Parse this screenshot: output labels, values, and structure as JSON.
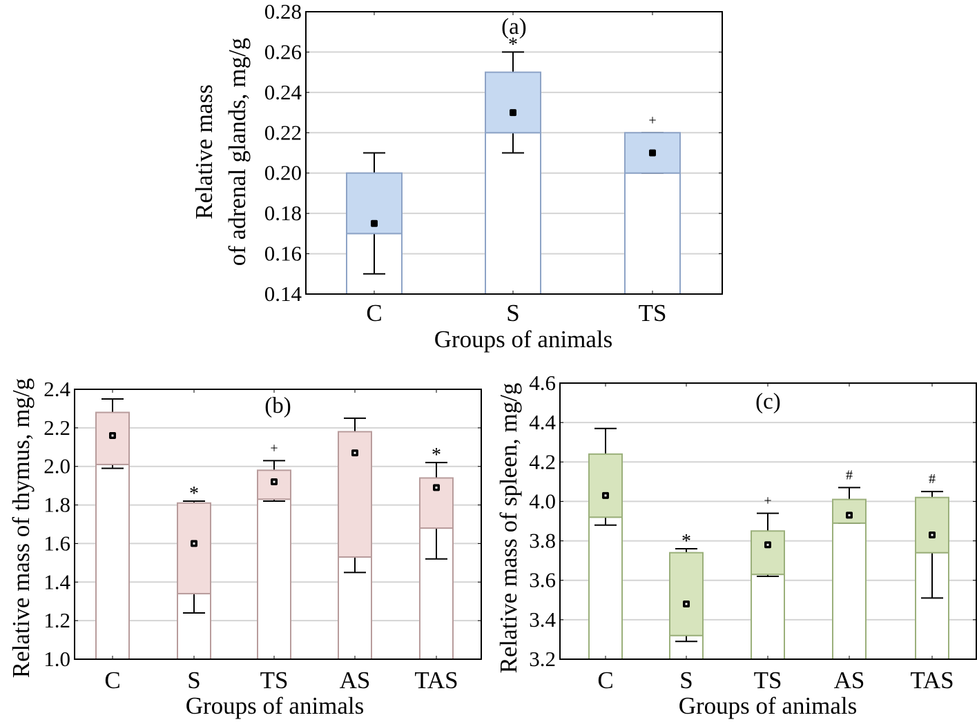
{
  "chart_data": [
    {
      "type": "box",
      "panel_label": "(a)",
      "xlabel": "Groups of animals",
      "ylabel": [
        "Relative mass",
        "of adrenal glands, mg/g"
      ],
      "categories": [
        "C",
        "S",
        "TS"
      ],
      "ylim": [
        0.14,
        0.28
      ],
      "yticks": [
        0.14,
        0.16,
        0.18,
        0.2,
        0.22,
        0.24,
        0.26,
        0.28
      ],
      "tick_decimals": 2,
      "grid": true,
      "fill_color": "#c6d9f1",
      "stroke_color": "#8da3c6",
      "median_marker": "filled-square",
      "boxes": [
        {
          "whisker_low": 0.15,
          "q1": 0.17,
          "median": 0.175,
          "q3": 0.2,
          "whisker_high": 0.21,
          "annotation": ""
        },
        {
          "whisker_low": 0.21,
          "q1": 0.22,
          "median": 0.23,
          "q3": 0.25,
          "whisker_high": 0.26,
          "annotation": "*"
        },
        {
          "whisker_low": 0.2,
          "q1": 0.2,
          "median": 0.21,
          "q3": 0.22,
          "whisker_high": 0.22,
          "annotation": "+"
        }
      ]
    },
    {
      "type": "box",
      "panel_label": "(b)",
      "xlabel": "Groups of animals",
      "ylabel": [
        "Relative mass of thymus, mg/g"
      ],
      "categories": [
        "C",
        "S",
        "TS",
        "AS",
        "TAS"
      ],
      "ylim": [
        1.0,
        2.4
      ],
      "yticks": [
        1.0,
        1.2,
        1.4,
        1.6,
        1.8,
        2.0,
        2.2,
        2.4
      ],
      "tick_decimals": 1,
      "grid": true,
      "fill_color": "#f2dcdb",
      "stroke_color": "#b89c9c",
      "median_marker": "hollow-square",
      "boxes": [
        {
          "whisker_low": 1.99,
          "q1": 2.01,
          "median": 2.16,
          "q3": 2.28,
          "whisker_high": 2.35,
          "annotation": ""
        },
        {
          "whisker_low": 1.24,
          "q1": 1.34,
          "median": 1.6,
          "q3": 1.81,
          "whisker_high": 1.82,
          "annotation": "*"
        },
        {
          "whisker_low": 1.82,
          "q1": 1.83,
          "median": 1.92,
          "q3": 1.98,
          "whisker_high": 2.03,
          "annotation": "+"
        },
        {
          "whisker_low": 1.45,
          "q1": 1.53,
          "median": 2.07,
          "q3": 2.18,
          "whisker_high": 2.25,
          "annotation": ""
        },
        {
          "whisker_low": 1.52,
          "q1": 1.68,
          "median": 1.89,
          "q3": 1.94,
          "whisker_high": 2.02,
          "annotation": "*"
        }
      ]
    },
    {
      "type": "box",
      "panel_label": "(c)",
      "xlabel": "Groups of animals",
      "ylabel": [
        "Relative mass of spleen, mg/g"
      ],
      "categories": [
        "C",
        "S",
        "TS",
        "AS",
        "TAS"
      ],
      "ylim": [
        3.2,
        4.6
      ],
      "yticks": [
        3.2,
        3.4,
        3.6,
        3.8,
        4.0,
        4.2,
        4.4,
        4.6
      ],
      "tick_decimals": 1,
      "grid": true,
      "fill_color": "#d7e4bd",
      "stroke_color": "#9bb07b",
      "median_marker": "hollow-square",
      "boxes": [
        {
          "whisker_low": 3.88,
          "q1": 3.92,
          "median": 4.03,
          "q3": 4.24,
          "whisker_high": 4.37,
          "annotation": ""
        },
        {
          "whisker_low": 3.29,
          "q1": 3.32,
          "median": 3.48,
          "q3": 3.74,
          "whisker_high": 3.76,
          "annotation": "*"
        },
        {
          "whisker_low": 3.62,
          "q1": 3.63,
          "median": 3.78,
          "q3": 3.85,
          "whisker_high": 3.94,
          "annotation": "+"
        },
        {
          "whisker_low": 3.89,
          "q1": 3.89,
          "median": 3.93,
          "q3": 4.01,
          "whisker_high": 4.07,
          "annotation": "#"
        },
        {
          "whisker_low": 3.51,
          "q1": 3.74,
          "median": 3.83,
          "q3": 4.02,
          "whisker_high": 4.05,
          "annotation": "#"
        }
      ]
    }
  ]
}
